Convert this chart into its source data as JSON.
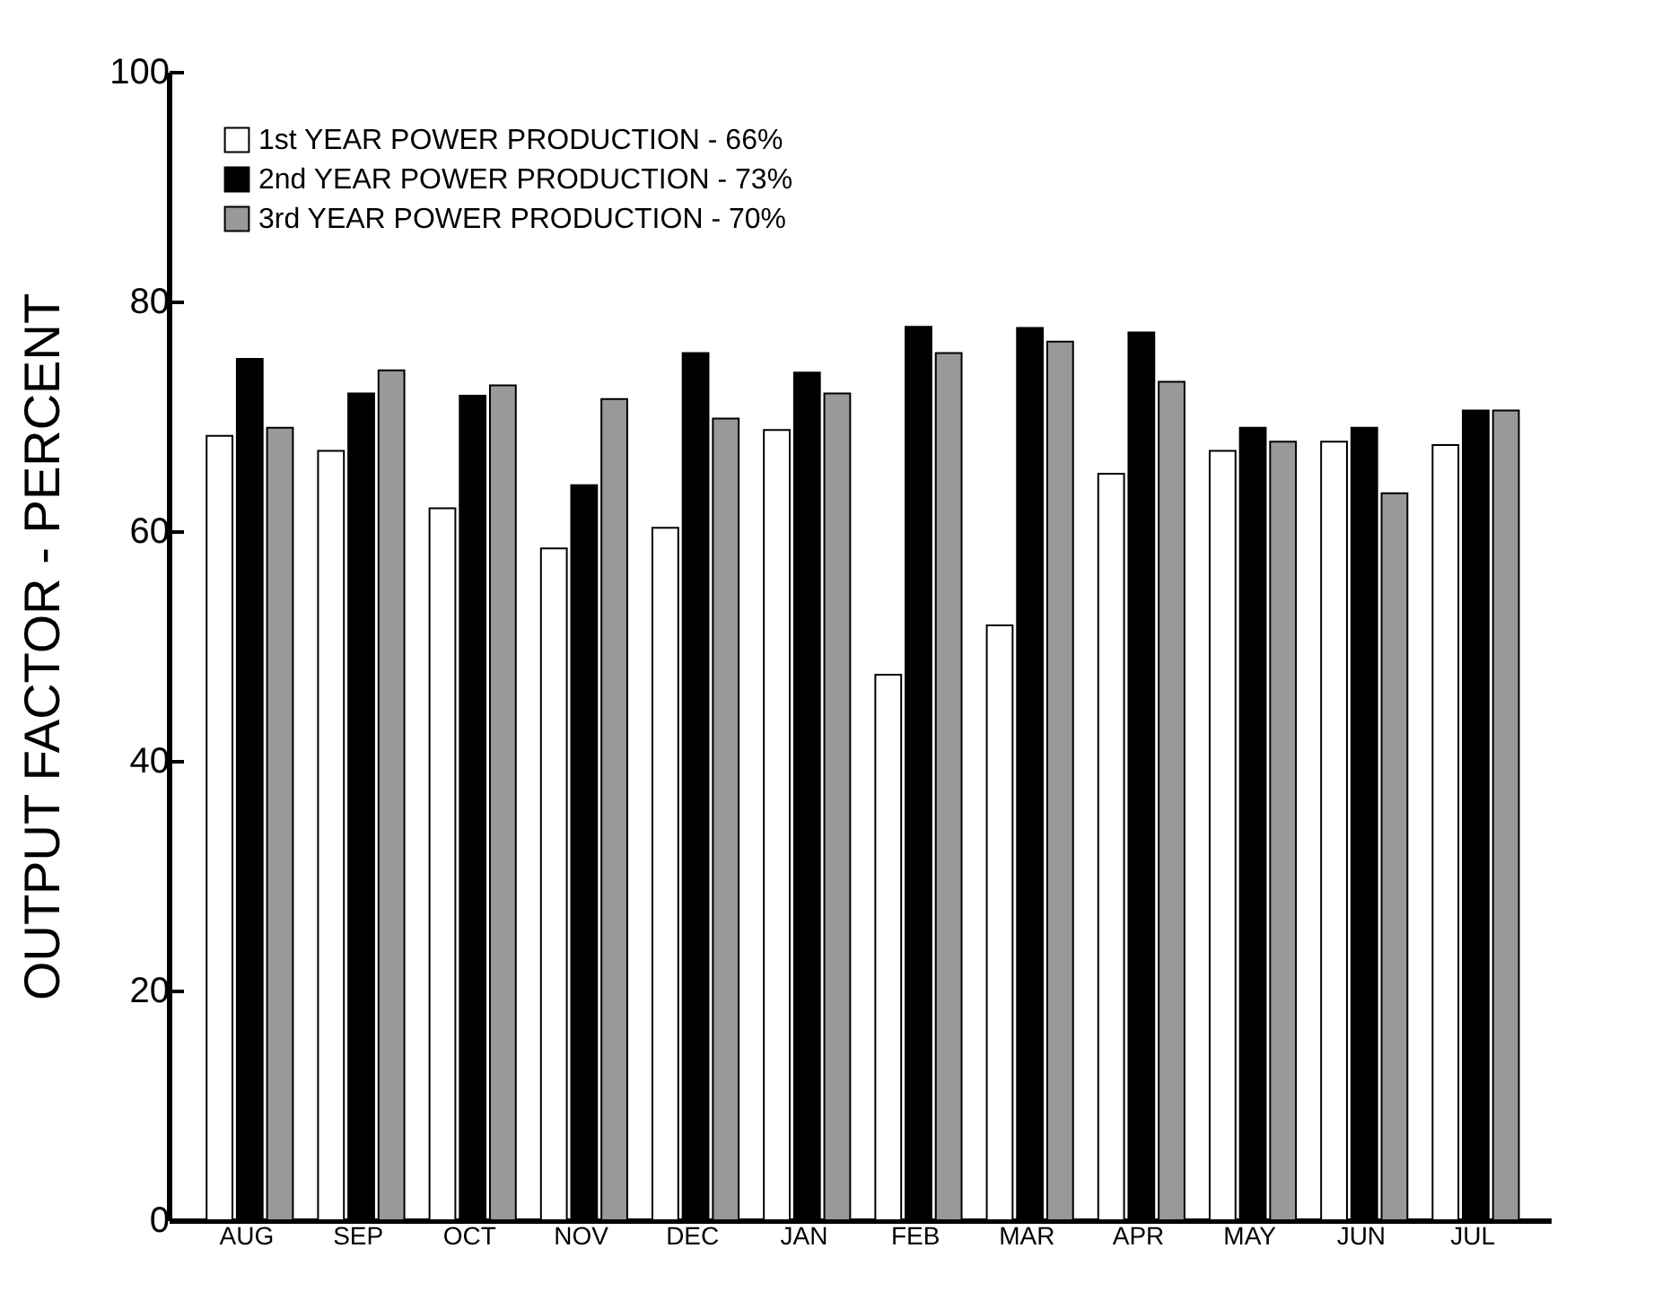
{
  "chart_data": {
    "type": "bar",
    "ylabel": "OUTPUT FACTOR - PERCENT",
    "categories": [
      "AUG",
      "SEP",
      "OCT",
      "NOV",
      "DEC",
      "JAN",
      "FEB",
      "MAR",
      "APR",
      "MAY",
      "JUN",
      "JUL"
    ],
    "series": [
      {
        "name": "1st YEAR POWER PRODUCTION - 66%",
        "color": "#ffffff",
        "values": [
          68.3,
          67,
          62,
          58.5,
          60.3,
          68.8,
          47.5,
          51.8,
          65,
          67,
          67.8,
          67.5
        ]
      },
      {
        "name": "2nd YEAR POWER PRODUCTION - 73%",
        "color": "#000000",
        "values": [
          75,
          72,
          71.8,
          64,
          75.5,
          73.8,
          77.8,
          77.7,
          77.3,
          69,
          69,
          70.5
        ]
      },
      {
        "name": "3rd YEAR POWER PRODUCTION - 70%",
        "color": "#999999",
        "values": [
          69,
          74,
          72.7,
          71.5,
          69.8,
          72,
          75.5,
          76.5,
          73,
          67.8,
          63.3,
          70.5
        ]
      }
    ],
    "ylim": [
      0,
      100
    ],
    "yticks": [
      0,
      20,
      40,
      60,
      80,
      100
    ],
    "grid": false,
    "legend": "top left"
  }
}
